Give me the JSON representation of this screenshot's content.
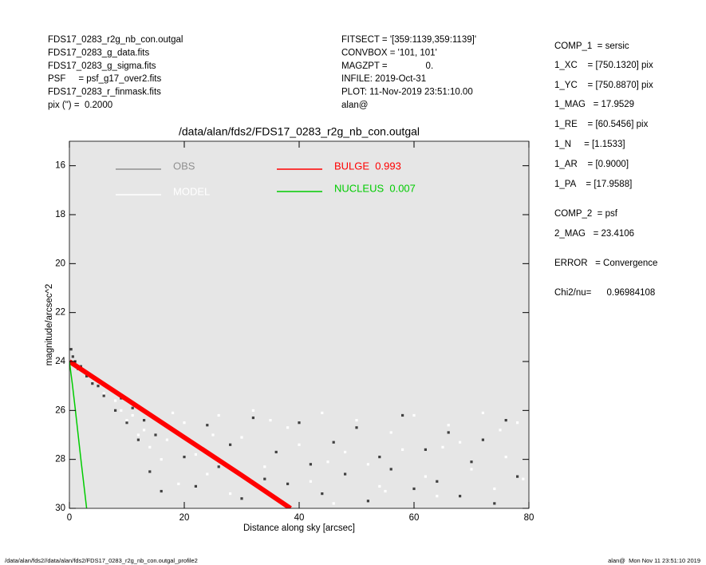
{
  "header": {
    "left": [
      "FDS17_0283_r2g_nb_con.outgal",
      "FDS17_0283_g_data.fits",
      "FDS17_0283_g_sigma.fits",
      "PSF     = psf_g17_over2.fits",
      "FDS17_0283_r_finmask.fits",
      "pix (\") =  0.2000"
    ],
    "middle": [
      "FITSECT = '[359:1139,359:1139]'",
      "CONVBOX = '101, 101'",
      "MAGZPT =               0.",
      "INFILE: 2019-Oct-31",
      "PLOT: 11-Nov-2019 23:51:10.00",
      "alan@"
    ]
  },
  "panel": [
    "COMP_1  = sersic",
    "1_XC    = [750.1320] pix",
    "1_YC    = [750.8870] pix",
    "1_MAG   = 17.9529",
    "1_RE    = [60.5456] pix",
    "1_N     = [1.1533]",
    "1_AR    = [0.9000]",
    "1_PA    = [17.9588]",
    "COMP_2  = psf",
    "2_MAG   = 23.4106",
    "ERROR   = Convergence",
    "Chi2/nu=      0.96984108"
  ],
  "footer": {
    "left": "/data/alan/fds2//data/alan/fds2/FDS17_0283_r2g_nb_con.outgal_profile2",
    "right": "alan@  Mon Nov 11 23:51:10 2019"
  },
  "chart_data": {
    "type": "scatter",
    "title": "/data/alan/fds2/FDS17_0283_r2g_nb_con.outgal",
    "x_label": "Distance along sky [arcsec]",
    "y_label": "magnitude/arcsec^2",
    "xlim": [
      0,
      80
    ],
    "ylim": [
      30,
      15
    ],
    "xticks": [
      0,
      20,
      40,
      60,
      80
    ],
    "yticks": [
      16,
      18,
      20,
      22,
      24,
      26,
      28,
      30
    ],
    "series": [
      {
        "name": "OBS",
        "type": "scatter",
        "color": "#404040",
        "legend_color": "#909090",
        "x": [
          0.3,
          0.6,
          1,
          1.5,
          2,
          3,
          4,
          5,
          6,
          7,
          8,
          9,
          10,
          11,
          12,
          13,
          14,
          15,
          16,
          18,
          20,
          22,
          24,
          26,
          28,
          30,
          32,
          34,
          36,
          38,
          40,
          42,
          44,
          46,
          48,
          50,
          52,
          54,
          56,
          58,
          60,
          62,
          64,
          66,
          68,
          70,
          72,
          74,
          76,
          78
        ],
        "values": [
          23.5,
          23.8,
          24.0,
          24.3,
          24.2,
          24.6,
          24.9,
          25.0,
          25.4,
          25.1,
          26.0,
          25.5,
          26.5,
          25.9,
          27.2,
          26.4,
          28.5,
          27.0,
          29.3,
          26.8,
          27.9,
          29.1,
          26.6,
          28.3,
          27.4,
          29.6,
          26.3,
          28.8,
          27.7,
          29.0,
          26.5,
          28.2,
          29.4,
          27.3,
          28.6,
          26.7,
          29.7,
          27.9,
          28.4,
          26.2,
          29.2,
          27.6,
          28.9,
          26.9,
          29.5,
          28.1,
          27.2,
          29.8,
          26.4,
          28.7
        ]
      },
      {
        "name": "MODEL",
        "type": "scatter",
        "color": "#ffffff",
        "legend_color": "#ffffff",
        "x": [
          6,
          8,
          9,
          10,
          11,
          12,
          13,
          14,
          15,
          16,
          17,
          18,
          19,
          20,
          22,
          24,
          26,
          28,
          30,
          32,
          34,
          36,
          38,
          40,
          42,
          44,
          46,
          48,
          50,
          52,
          54,
          56,
          58,
          60,
          62,
          64,
          66,
          68,
          70,
          72,
          74,
          76,
          78,
          79,
          25,
          35,
          45,
          55,
          65,
          75
        ],
        "values": [
          25.3,
          25.6,
          26.0,
          26.4,
          26.2,
          27.0,
          26.8,
          27.5,
          26.3,
          28.0,
          27.2,
          26.1,
          29.0,
          26.5,
          27.8,
          28.6,
          26.2,
          29.4,
          27.1,
          26.0,
          28.3,
          29.6,
          26.7,
          27.4,
          28.9,
          26.1,
          29.8,
          27.7,
          26.4,
          28.2,
          29.1,
          26.9,
          27.6,
          26.2,
          28.7,
          29.5,
          26.6,
          27.3,
          28.4,
          26.1,
          29.2,
          27.9,
          26.5,
          28.8,
          27.0,
          26.4,
          28.1,
          29.3,
          27.5,
          26.8
        ]
      },
      {
        "name": "BULGE  0.993",
        "type": "line",
        "color": "#ff0000",
        "legend_color": "#ff0000",
        "x": [
          0,
          10,
          20,
          30,
          38.5
        ],
        "values": [
          24,
          25.55,
          27.1,
          28.65,
          30
        ]
      },
      {
        "name": "NUCLEUS  0.007",
        "type": "line",
        "color": "#00cc00",
        "legend_color": "#00cc00",
        "x": [
          0,
          0.5,
          1,
          2,
          3
        ],
        "values": [
          24,
          24.9,
          25.9,
          28,
          30
        ]
      }
    ]
  }
}
